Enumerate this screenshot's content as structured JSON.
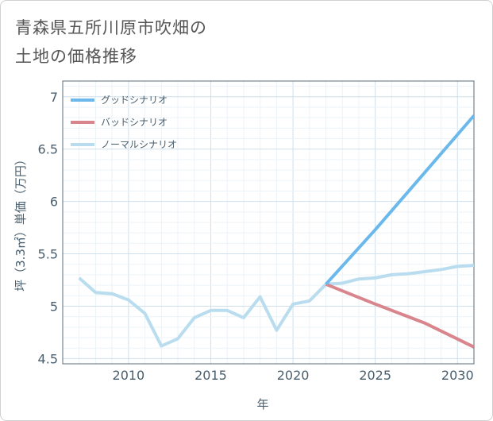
{
  "chart_data": {
    "type": "line",
    "title_lines": [
      "青森県五所川原市吹畑の",
      "土地の価格推移"
    ],
    "xlabel": "年",
    "ylabel": "坪（3.3㎡）単価（万円）",
    "xlim": [
      2006,
      2031
    ],
    "ylim": [
      4.45,
      7.15
    ],
    "x_ticks": [
      2010,
      2015,
      2020,
      2025,
      2030
    ],
    "y_ticks": [
      4.5,
      5,
      5.5,
      6,
      6.5,
      7
    ],
    "x_tick_labels": [
      "2010",
      "2015",
      "2020",
      "2025",
      "2030"
    ],
    "y_tick_labels": [
      "4.5",
      "5",
      "5.5",
      "6",
      "6.5",
      "7"
    ],
    "grid": true,
    "legend_position": "top-left",
    "series": [
      {
        "name": "グッドシナリオ",
        "color": "#6bb9ec",
        "x": [
          2022,
          2025,
          2031
        ],
        "y": [
          5.21,
          5.73,
          6.82
        ]
      },
      {
        "name": "バッドシナリオ",
        "color": "#d9858d",
        "x": [
          2022,
          2025,
          2028,
          2031
        ],
        "y": [
          5.21,
          5.02,
          4.84,
          4.61
        ]
      },
      {
        "name": "ノーマルシナリオ",
        "color": "#b9ddee",
        "x": [
          2007,
          2008,
          2009,
          2010,
          2011,
          2012,
          2013,
          2014,
          2015,
          2016,
          2017,
          2018,
          2019,
          2020,
          2021,
          2022,
          2023,
          2024,
          2025,
          2026,
          2027,
          2028,
          2029,
          2030,
          2031
        ],
        "y": [
          5.27,
          5.13,
          5.12,
          5.06,
          4.93,
          4.62,
          4.69,
          4.89,
          4.96,
          4.96,
          4.89,
          5.09,
          4.77,
          5.02,
          5.05,
          5.21,
          5.22,
          5.26,
          5.27,
          5.3,
          5.31,
          5.33,
          5.35,
          5.38,
          5.39
        ]
      }
    ]
  }
}
